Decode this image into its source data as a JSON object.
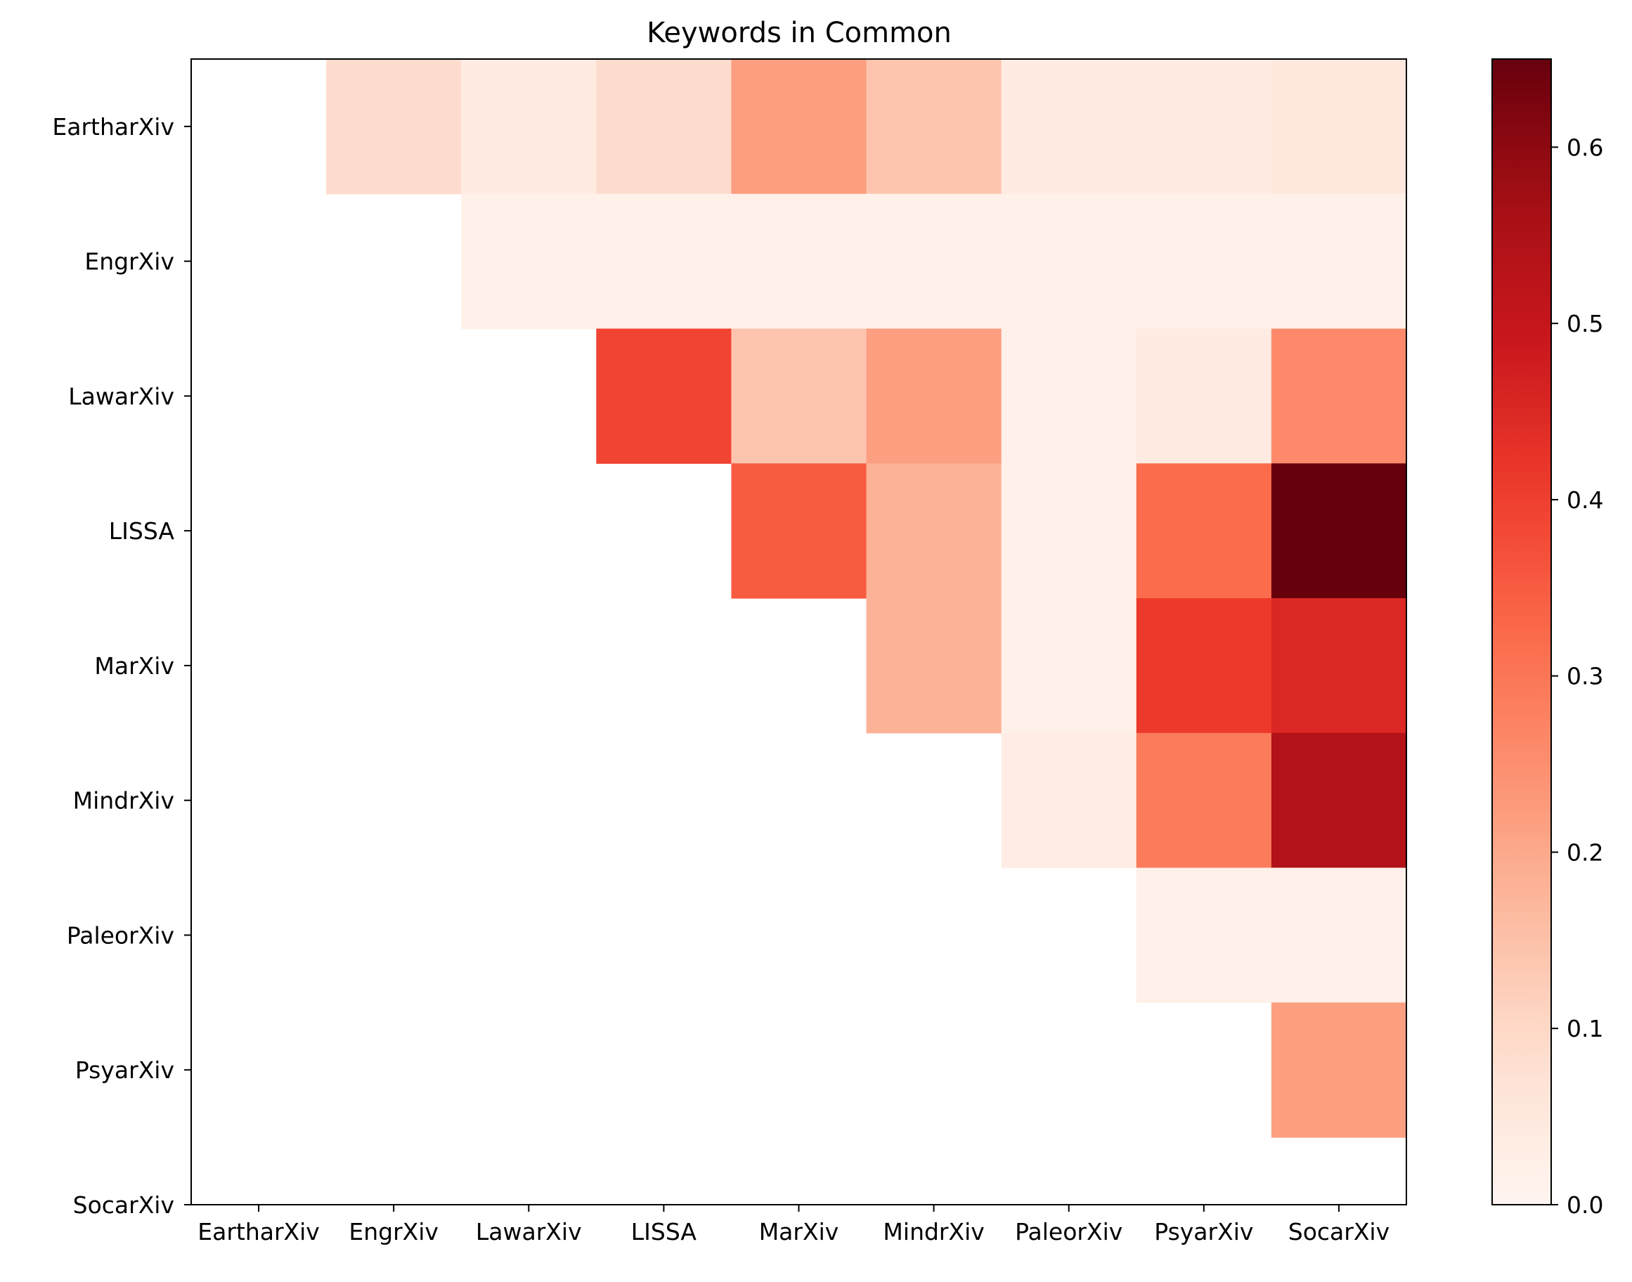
{
  "chart_data": {
    "type": "heatmap",
    "title": "Keywords in Common",
    "x_categories": [
      "EartharXiv",
      "EngrXiv",
      "LawarXiv",
      "LISSA",
      "MarXiv",
      "MindrXiv",
      "PaleorXiv",
      "PsyarXiv",
      "SocarXiv"
    ],
    "y_categories": [
      "EartharXiv",
      "EngrXiv",
      "LawarXiv",
      "LISSA",
      "MarXiv",
      "MindrXiv",
      "PaleorXiv",
      "PsyarXiv",
      "SocarXiv"
    ],
    "values": [
      [
        null,
        0.09,
        0.04,
        0.09,
        0.22,
        0.14,
        0.04,
        0.04,
        0.05
      ],
      [
        null,
        null,
        0.02,
        0.02,
        0.02,
        0.02,
        0.02,
        0.02,
        0.02
      ],
      [
        null,
        null,
        null,
        0.39,
        0.14,
        0.22,
        0.02,
        0.04,
        0.26
      ],
      [
        null,
        null,
        null,
        null,
        0.35,
        0.18,
        0.02,
        0.32,
        0.65
      ],
      [
        null,
        null,
        null,
        null,
        null,
        0.18,
        0.02,
        0.41,
        0.45
      ],
      [
        null,
        null,
        null,
        null,
        null,
        null,
        0.03,
        0.29,
        0.54
      ],
      [
        null,
        null,
        null,
        null,
        null,
        null,
        null,
        0.02,
        0.02
      ],
      [
        null,
        null,
        null,
        null,
        null,
        null,
        null,
        null,
        0.22
      ],
      [
        null,
        null,
        null,
        null,
        null,
        null,
        null,
        null,
        null
      ]
    ],
    "colormap": "Reds",
    "color_range": [
      0,
      0.65
    ],
    "colorbar_ticks": [
      "0.0",
      "0.1",
      "0.2",
      "0.3",
      "0.4",
      "0.5",
      "0.6"
    ],
    "colorbar_tick_values": [
      0,
      0.1,
      0.2,
      0.3,
      0.4,
      0.5,
      0.6
    ],
    "grid": false
  }
}
